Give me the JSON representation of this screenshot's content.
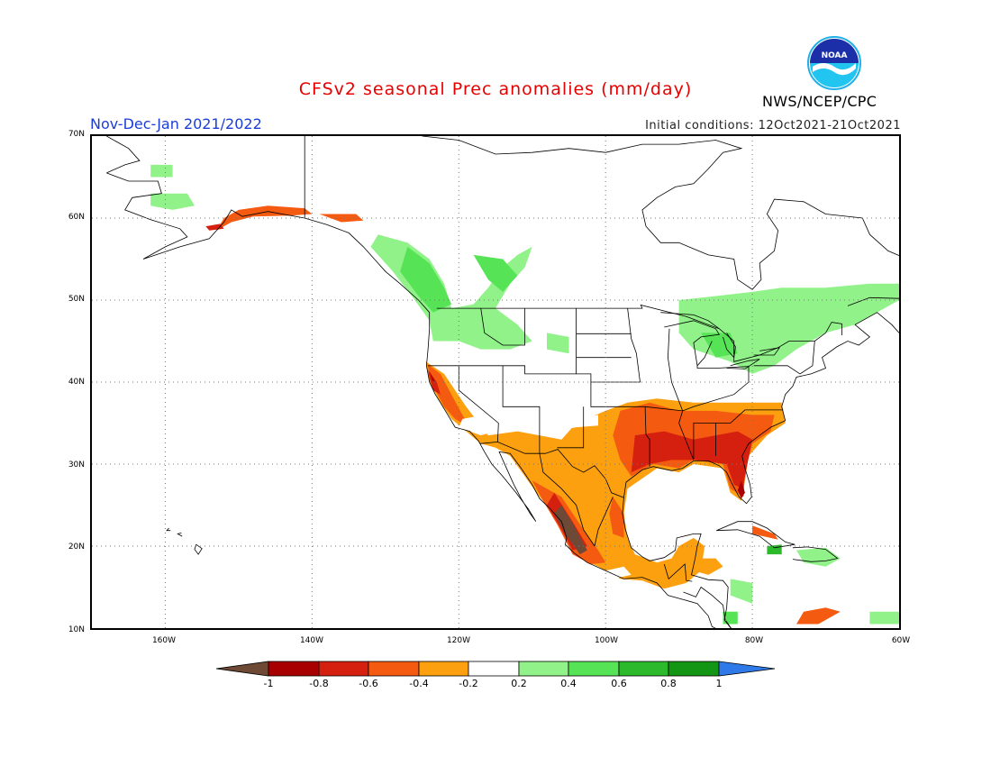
{
  "title": "CFSv2 seasonal Prec anomalies (mm/day)",
  "period": "Nov-Dec-Jan 2021/2022",
  "initial_conditions": "Initial conditions: 12Oct2021-21Oct2021",
  "agency": "NWS/NCEP/CPC",
  "logo_text": "NOAA",
  "map": {
    "lon_range": [
      -170,
      -60
    ],
    "lat_range": [
      10,
      70
    ],
    "lat_ticks": [
      "10N",
      "20N",
      "30N",
      "40N",
      "50N",
      "60N",
      "70N"
    ],
    "lon_ticks": [
      "160W",
      "140W",
      "120W",
      "100W",
      "80W",
      "60W"
    ],
    "grid": "dotted"
  },
  "colorbar": {
    "labels": [
      "-1",
      "-0.8",
      "-0.6",
      "-0.4",
      "-0.2",
      "0.2",
      "0.4",
      "0.6",
      "0.8",
      "1"
    ],
    "colors": {
      "lt_-1": "#6e4a36",
      "-1_-0.8": "#a80000",
      "-0.8_-0.6": "#d52010",
      "-0.6_-0.4": "#f45a10",
      "-0.4_-0.2": "#fca010",
      "-0.2_0.2": "#ffffff",
      "0.2_0.4": "#92f28a",
      "0.4_0.6": "#56e456",
      "0.6_0.8": "#2cba2c",
      "0.8_1": "#139613",
      "gt_1": "#2f7ae8"
    }
  }
}
